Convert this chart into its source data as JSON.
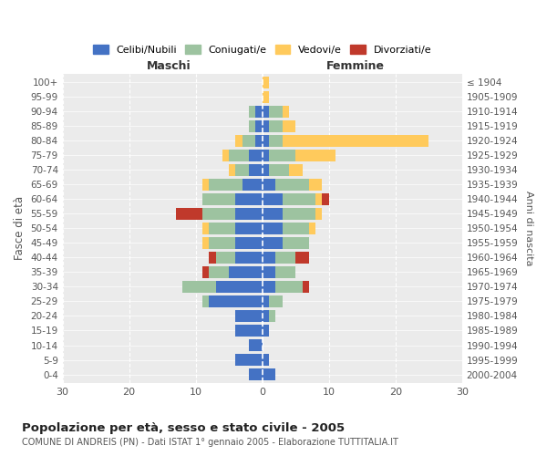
{
  "age_groups": [
    "0-4",
    "5-9",
    "10-14",
    "15-19",
    "20-24",
    "25-29",
    "30-34",
    "35-39",
    "40-44",
    "45-49",
    "50-54",
    "55-59",
    "60-64",
    "65-69",
    "70-74",
    "75-79",
    "80-84",
    "85-89",
    "90-94",
    "95-99",
    "100+"
  ],
  "birth_years": [
    "2000-2004",
    "1995-1999",
    "1990-1994",
    "1985-1989",
    "1980-1984",
    "1975-1979",
    "1970-1974",
    "1965-1969",
    "1960-1964",
    "1955-1959",
    "1950-1954",
    "1945-1949",
    "1940-1944",
    "1935-1939",
    "1930-1934",
    "1925-1929",
    "1920-1924",
    "1915-1919",
    "1910-1914",
    "1905-1909",
    "≤ 1904"
  ],
  "maschi": {
    "celibi": [
      2,
      4,
      2,
      4,
      4,
      8,
      7,
      5,
      4,
      4,
      4,
      4,
      4,
      3,
      2,
      2,
      1,
      1,
      1,
      0,
      0
    ],
    "coniugati": [
      0,
      0,
      0,
      0,
      0,
      1,
      5,
      3,
      3,
      4,
      4,
      5,
      5,
      5,
      2,
      3,
      2,
      1,
      1,
      0,
      0
    ],
    "vedovi": [
      0,
      0,
      0,
      0,
      0,
      0,
      0,
      0,
      0,
      1,
      1,
      0,
      0,
      1,
      1,
      1,
      1,
      0,
      0,
      0,
      0
    ],
    "divorziati": [
      0,
      0,
      0,
      0,
      0,
      0,
      0,
      1,
      1,
      0,
      0,
      4,
      0,
      0,
      0,
      0,
      0,
      0,
      0,
      0,
      0
    ]
  },
  "femmine": {
    "nubili": [
      2,
      1,
      0,
      1,
      1,
      1,
      2,
      2,
      2,
      3,
      3,
      3,
      3,
      2,
      1,
      1,
      1,
      1,
      1,
      0,
      0
    ],
    "coniugate": [
      0,
      0,
      0,
      0,
      1,
      2,
      4,
      3,
      3,
      4,
      4,
      5,
      5,
      5,
      3,
      4,
      2,
      2,
      2,
      0,
      0
    ],
    "vedove": [
      0,
      0,
      0,
      0,
      0,
      0,
      0,
      0,
      0,
      0,
      1,
      1,
      1,
      2,
      2,
      6,
      22,
      2,
      1,
      1,
      1
    ],
    "divorziate": [
      0,
      0,
      0,
      0,
      0,
      0,
      1,
      0,
      2,
      0,
      0,
      0,
      1,
      0,
      0,
      0,
      0,
      0,
      0,
      0,
      0
    ]
  },
  "colors": {
    "celibi": "#4472C4",
    "coniugati": "#9DC3A0",
    "vedovi": "#FFCA5C",
    "divorziati": "#C0392B"
  },
  "title": "Popolazione per età, sesso e stato civile - 2005",
  "subtitle": "COMUNE DI ANDREIS (PN) - Dati ISTAT 1° gennaio 2005 - Elaborazione TUTTITALIA.IT",
  "xlabel_maschi": "Maschi",
  "xlabel_femmine": "Femmine",
  "ylabel": "Fasce di età",
  "ylabel_right": "Anni di nascita",
  "xlim": 30,
  "background_color": "#ffffff",
  "plot_bg_color": "#ebebeb",
  "grid_color": "#cccccc"
}
